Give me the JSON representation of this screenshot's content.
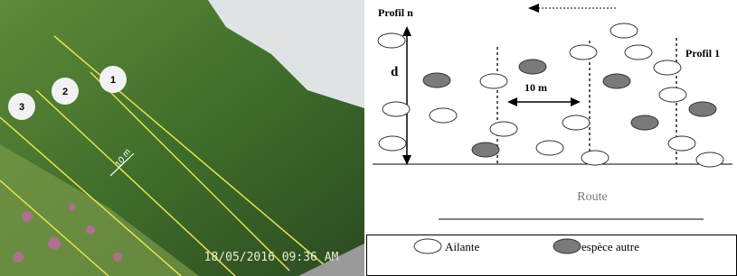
{
  "photo": {
    "markers": [
      "1",
      "2",
      "3"
    ],
    "scale_label": "10 m",
    "timestamp": "18/05/2016  09:36  AM"
  },
  "diagram": {
    "profile_n": "Profil n",
    "profile_1": "Profil 1",
    "distance_label": "d",
    "spacing_label": "10 m",
    "road_label": "Route"
  },
  "legend": {
    "items": [
      "Ailante",
      "espèce autre"
    ]
  }
}
